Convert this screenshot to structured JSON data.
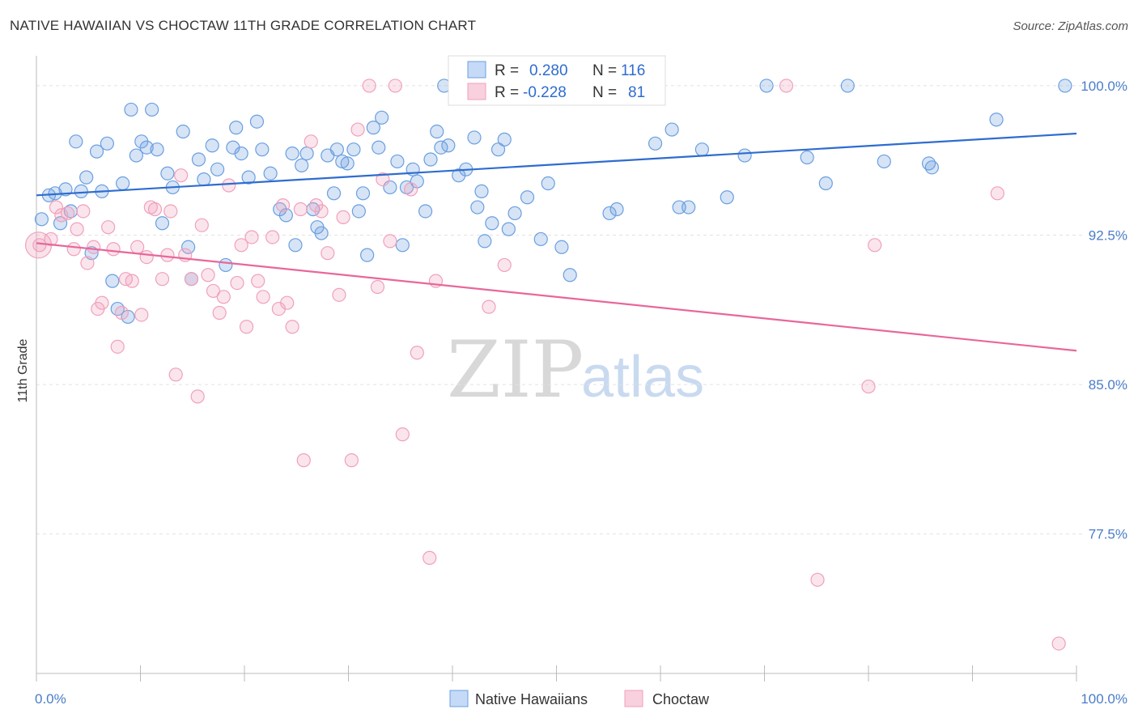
{
  "title": "NATIVE HAWAIIAN VS CHOCTAW 11TH GRADE CORRELATION CHART",
  "source": "Source: ZipAtlas.com",
  "colors": {
    "blue": "#6a9fe0",
    "blue_line": "#2f6ccf",
    "pink": "#f0a0bb",
    "pink_line": "#e8679a"
  },
  "chart_data": {
    "type": "scatter",
    "ylabel": "11th Grade",
    "xlabel": "",
    "xlim": [
      0,
      100
    ],
    "ylim": [
      70.5,
      101.5
    ],
    "x_tick_labels": [
      "0.0%",
      "100.0%"
    ],
    "y_ticks": [
      100.0,
      92.5,
      85.0,
      77.5
    ],
    "y_tick_labels": [
      "100.0%",
      "92.5%",
      "85.0%",
      "77.5%"
    ],
    "grid": true,
    "legend": {
      "placement": "top-center",
      "rows": [
        {
          "r_label": "R =",
          "r": "0.280",
          "n_label": "N =",
          "n": "116"
        },
        {
          "r_label": "R =",
          "r": "-0.228",
          "n_label": "N =",
          "n": "81"
        }
      ]
    },
    "series": [
      {
        "name": "Native Hawaiians",
        "color": "#6a9fe0",
        "trend": [
          [
            0,
            94.5
          ],
          [
            100,
            97.6
          ]
        ],
        "points": [
          [
            0.5,
            93.3
          ],
          [
            1.2,
            94.5
          ],
          [
            1.8,
            94.6
          ],
          [
            2.3,
            93.1
          ],
          [
            2.8,
            94.8
          ],
          [
            3.3,
            93.7
          ],
          [
            3.8,
            97.2
          ],
          [
            4.3,
            94.7
          ],
          [
            4.8,
            95.4
          ],
          [
            5.3,
            91.6
          ],
          [
            5.8,
            96.7
          ],
          [
            6.3,
            94.7
          ],
          [
            6.8,
            97.1
          ],
          [
            7.3,
            90.2
          ],
          [
            7.8,
            88.8
          ],
          [
            8.3,
            95.1
          ],
          [
            8.8,
            88.4
          ],
          [
            9.1,
            98.8
          ],
          [
            9.6,
            96.5
          ],
          [
            10.1,
            97.2
          ],
          [
            10.6,
            96.9
          ],
          [
            11.1,
            98.8
          ],
          [
            11.6,
            96.8
          ],
          [
            12.1,
            93.1
          ],
          [
            12.6,
            95.6
          ],
          [
            13.1,
            94.9
          ],
          [
            14.1,
            97.7
          ],
          [
            14.6,
            91.9
          ],
          [
            14.9,
            90.3
          ],
          [
            15.6,
            96.3
          ],
          [
            16.1,
            95.3
          ],
          [
            16.9,
            97.0
          ],
          [
            17.4,
            95.8
          ],
          [
            18.2,
            91.0
          ],
          [
            18.9,
            96.9
          ],
          [
            19.2,
            97.9
          ],
          [
            19.7,
            96.6
          ],
          [
            20.4,
            95.4
          ],
          [
            21.2,
            98.2
          ],
          [
            21.7,
            96.8
          ],
          [
            22.5,
            95.6
          ],
          [
            23.4,
            93.8
          ],
          [
            24.0,
            93.5
          ],
          [
            24.6,
            96.6
          ],
          [
            24.9,
            92.0
          ],
          [
            25.5,
            96.0
          ],
          [
            26.0,
            96.6
          ],
          [
            26.6,
            93.8
          ],
          [
            27.0,
            92.9
          ],
          [
            27.4,
            92.6
          ],
          [
            28.0,
            96.5
          ],
          [
            28.6,
            94.6
          ],
          [
            28.9,
            96.8
          ],
          [
            29.4,
            96.2
          ],
          [
            29.9,
            96.1
          ],
          [
            30.5,
            96.8
          ],
          [
            31.0,
            93.7
          ],
          [
            31.4,
            94.6
          ],
          [
            31.8,
            91.5
          ],
          [
            32.4,
            97.9
          ],
          [
            32.9,
            96.9
          ],
          [
            33.2,
            98.4
          ],
          [
            34.0,
            94.9
          ],
          [
            34.7,
            96.2
          ],
          [
            35.2,
            92.0
          ],
          [
            35.6,
            94.9
          ],
          [
            36.2,
            95.8
          ],
          [
            36.6,
            95.2
          ],
          [
            37.4,
            93.7
          ],
          [
            37.9,
            96.3
          ],
          [
            38.5,
            97.7
          ],
          [
            38.9,
            96.9
          ],
          [
            39.2,
            100.0
          ],
          [
            39.6,
            97.0
          ],
          [
            40.6,
            95.5
          ],
          [
            41.3,
            95.8
          ],
          [
            42.1,
            97.4
          ],
          [
            42.4,
            93.9
          ],
          [
            42.8,
            94.7
          ],
          [
            43.1,
            92.2
          ],
          [
            43.8,
            93.1
          ],
          [
            44.4,
            96.8
          ],
          [
            45.0,
            97.3
          ],
          [
            45.4,
            92.8
          ],
          [
            46.0,
            93.6
          ],
          [
            47.2,
            94.4
          ],
          [
            47.6,
            100.0
          ],
          [
            48.5,
            92.3
          ],
          [
            49.2,
            95.1
          ],
          [
            50.0,
            100.0
          ],
          [
            50.5,
            91.9
          ],
          [
            51.3,
            90.5
          ],
          [
            52.0,
            100.0
          ],
          [
            53.9,
            100.0
          ],
          [
            54.5,
            100.0
          ],
          [
            55.1,
            93.6
          ],
          [
            55.8,
            93.8
          ],
          [
            57.3,
            100.0
          ],
          [
            59.5,
            97.1
          ],
          [
            61.1,
            97.8
          ],
          [
            61.8,
            93.9
          ],
          [
            62.7,
            93.9
          ],
          [
            64.0,
            96.8
          ],
          [
            66.4,
            94.4
          ],
          [
            68.1,
            96.5
          ],
          [
            70.2,
            100.0
          ],
          [
            74.1,
            96.4
          ],
          [
            75.9,
            95.1
          ],
          [
            78.0,
            100.0
          ],
          [
            81.5,
            96.2
          ],
          [
            85.8,
            96.1
          ],
          [
            86.1,
            95.9
          ],
          [
            92.3,
            98.3
          ],
          [
            98.9,
            100.0
          ]
        ]
      },
      {
        "name": "Choctaw",
        "color": "#f0a0bb",
        "trend": [
          [
            0,
            92.1
          ],
          [
            100,
            86.7
          ]
        ],
        "points": [
          [
            0.3,
            92.0
          ],
          [
            1.4,
            92.3
          ],
          [
            1.9,
            93.9
          ],
          [
            2.4,
            93.5
          ],
          [
            3.0,
            93.6
          ],
          [
            3.6,
            91.8
          ],
          [
            3.9,
            92.8
          ],
          [
            4.5,
            93.7
          ],
          [
            4.9,
            91.1
          ],
          [
            5.5,
            91.9
          ],
          [
            5.9,
            88.8
          ],
          [
            6.3,
            89.1
          ],
          [
            6.9,
            92.9
          ],
          [
            7.4,
            91.8
          ],
          [
            7.8,
            86.9
          ],
          [
            8.2,
            88.6
          ],
          [
            8.6,
            90.3
          ],
          [
            9.2,
            90.2
          ],
          [
            9.7,
            91.9
          ],
          [
            10.1,
            88.5
          ],
          [
            10.6,
            91.4
          ],
          [
            11.0,
            93.9
          ],
          [
            11.4,
            93.8
          ],
          [
            12.1,
            90.3
          ],
          [
            12.6,
            91.5
          ],
          [
            12.9,
            93.7
          ],
          [
            13.4,
            85.5
          ],
          [
            13.9,
            95.5
          ],
          [
            14.3,
            91.5
          ],
          [
            14.9,
            90.3
          ],
          [
            15.5,
            84.4
          ],
          [
            15.9,
            93.0
          ],
          [
            16.5,
            90.5
          ],
          [
            17.0,
            89.7
          ],
          [
            17.6,
            88.6
          ],
          [
            18.0,
            89.4
          ],
          [
            18.5,
            95.0
          ],
          [
            19.3,
            90.1
          ],
          [
            19.7,
            92.0
          ],
          [
            20.2,
            87.9
          ],
          [
            20.7,
            92.4
          ],
          [
            21.3,
            90.2
          ],
          [
            21.8,
            89.4
          ],
          [
            22.7,
            92.4
          ],
          [
            23.3,
            88.8
          ],
          [
            23.7,
            94.0
          ],
          [
            24.1,
            89.1
          ],
          [
            24.6,
            87.9
          ],
          [
            25.4,
            93.8
          ],
          [
            25.7,
            81.2
          ],
          [
            26.4,
            97.2
          ],
          [
            26.9,
            94.0
          ],
          [
            27.4,
            93.7
          ],
          [
            28.0,
            91.6
          ],
          [
            29.1,
            89.5
          ],
          [
            29.5,
            93.4
          ],
          [
            30.3,
            81.2
          ],
          [
            30.9,
            97.8
          ],
          [
            32.0,
            100.0
          ],
          [
            32.8,
            89.9
          ],
          [
            33.3,
            95.3
          ],
          [
            34.0,
            92.2
          ],
          [
            34.5,
            100.0
          ],
          [
            35.2,
            82.5
          ],
          [
            36.0,
            94.8
          ],
          [
            36.6,
            86.6
          ],
          [
            37.8,
            76.3
          ],
          [
            38.4,
            90.2
          ],
          [
            43.5,
            88.9
          ],
          [
            45.0,
            91.0
          ],
          [
            58.6,
            100.0
          ],
          [
            72.1,
            100.0
          ],
          [
            75.1,
            75.2
          ],
          [
            80.0,
            84.9
          ],
          [
            80.6,
            92.0
          ],
          [
            92.4,
            94.6
          ],
          [
            98.3,
            72.0
          ]
        ]
      }
    ]
  }
}
